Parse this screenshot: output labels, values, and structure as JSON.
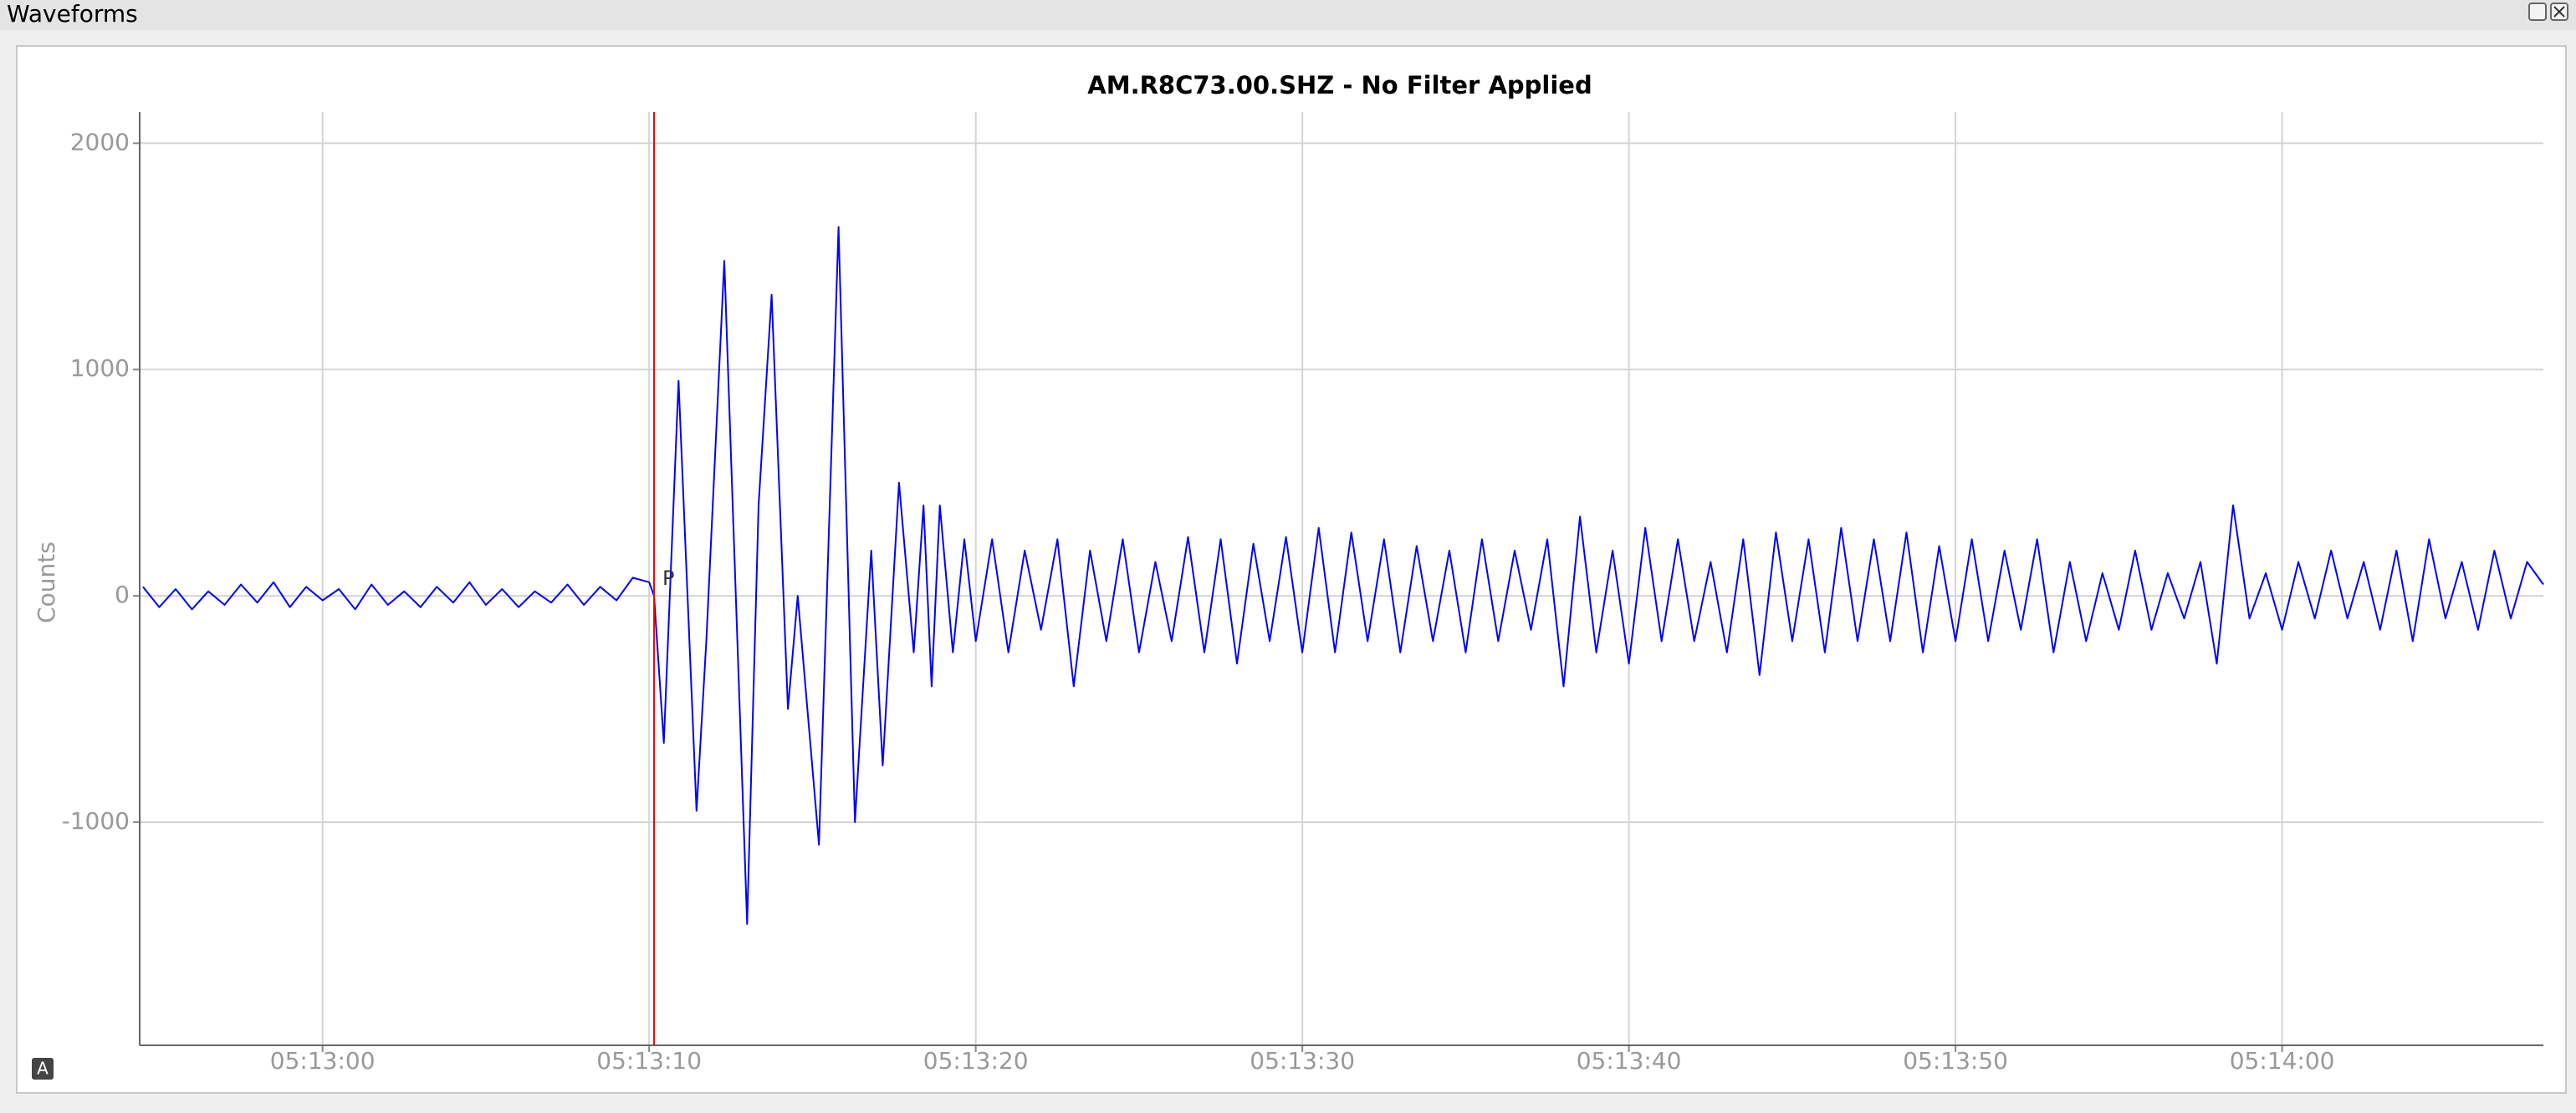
{
  "window": {
    "title": "Waveforms",
    "badge": "A"
  },
  "chart_data": {
    "type": "line",
    "title": "AM.R8C73.00.SHZ - No Filter Applied",
    "ylabel": "Counts",
    "color": "#0000ff",
    "grid": true,
    "marker": {
      "label": "P",
      "x": 18790.15,
      "color": "#ff0000"
    },
    "xlim": [
      18774.4,
      18848.0
    ],
    "ylim": [
      -1986,
      2138
    ],
    "xticks": [
      {
        "value": 18780,
        "label": "05:13:00"
      },
      {
        "value": 18790,
        "label": "05:13:10"
      },
      {
        "value": 18800,
        "label": "05:13:20"
      },
      {
        "value": 18810,
        "label": "05:13:30"
      },
      {
        "value": 18820,
        "label": "05:13:40"
      },
      {
        "value": 18830,
        "label": "05:13:50"
      },
      {
        "value": 18840,
        "label": "05:14:00"
      }
    ],
    "yticks": [
      2000,
      1000,
      0,
      -1000
    ],
    "x": [
      18774.5,
      18775.0,
      18775.5,
      18776.0,
      18776.5,
      18777.0,
      18777.5,
      18778.0,
      18778.5,
      18779.0,
      18779.5,
      18780.0,
      18780.5,
      18781.0,
      18781.5,
      18782.0,
      18782.5,
      18783.0,
      18783.5,
      18784.0,
      18784.5,
      18785.0,
      18785.5,
      18786.0,
      18786.5,
      18787.0,
      18787.5,
      18788.0,
      18788.5,
      18789.0,
      18789.5,
      18790.0,
      18790.15,
      18790.45,
      18790.9,
      18791.45,
      18791.75,
      18792.3,
      18793.0,
      18793.35,
      18793.75,
      18794.25,
      18794.55,
      18795.2,
      18795.8,
      18796.3,
      18796.8,
      18797.15,
      18797.65,
      18798.1,
      18798.4,
      18798.65,
      18798.9,
      18799.3,
      18799.65,
      18800.0,
      18800.5,
      18801.0,
      18801.5,
      18802.0,
      18802.5,
      18803.0,
      18803.5,
      18804.0,
      18804.5,
      18805.0,
      18805.5,
      18806.0,
      18806.5,
      18807.0,
      18807.5,
      18808.0,
      18808.5,
      18809.0,
      18809.5,
      18810.0,
      18810.5,
      18811.0,
      18811.5,
      18812.0,
      18812.5,
      18813.0,
      18813.5,
      18814.0,
      18814.5,
      18815.0,
      18815.5,
      18816.0,
      18816.5,
      18817.0,
      18817.5,
      18818.0,
      18818.5,
      18819.0,
      18819.5,
      18820.0,
      18820.5,
      18821.0,
      18821.5,
      18822.0,
      18822.5,
      18823.0,
      18823.5,
      18824.0,
      18824.5,
      18825.0,
      18825.5,
      18826.0,
      18826.5,
      18827.0,
      18827.5,
      18828.0,
      18828.5,
      18829.0,
      18829.5,
      18830.0,
      18830.5,
      18831.0,
      18831.5,
      18832.0,
      18832.5,
      18833.0,
      18833.5,
      18834.0,
      18834.5,
      18835.0,
      18835.5,
      18836.0,
      18836.5,
      18837.0,
      18837.5,
      18838.0,
      18838.5,
      18839.0,
      18839.5,
      18840.0,
      18840.5,
      18841.0,
      18841.5,
      18842.0,
      18842.5,
      18843.0,
      18843.5,
      18844.0,
      18844.5,
      18845.0,
      18845.5,
      18846.0,
      18846.5,
      18847.0,
      18847.5,
      18848.0
    ],
    "values": [
      40,
      -50,
      30,
      -60,
      20,
      -40,
      50,
      -30,
      60,
      -50,
      40,
      -20,
      30,
      -60,
      50,
      -40,
      20,
      -50,
      40,
      -30,
      60,
      -40,
      30,
      -50,
      20,
      -30,
      50,
      -40,
      40,
      -20,
      80,
      60,
      0,
      -650,
      950,
      -950,
      -200,
      1480,
      -1450,
      400,
      1330,
      -500,
      0,
      -1100,
      1630,
      -1000,
      200,
      -750,
      500,
      -250,
      400,
      -400,
      400,
      -250,
      250,
      -200,
      250,
      -250,
      200,
      -150,
      250,
      -400,
      200,
      -200,
      250,
      -250,
      150,
      -200,
      260,
      -250,
      250,
      -300,
      230,
      -200,
      260,
      -250,
      300,
      -250,
      280,
      -200,
      250,
      -250,
      220,
      -200,
      200,
      -250,
      250,
      -200,
      200,
      -150,
      250,
      -400,
      350,
      -250,
      200,
      -300,
      300,
      -200,
      250,
      -200,
      150,
      -250,
      250,
      -350,
      280,
      -200,
      250,
      -250,
      300,
      -200,
      250,
      -200,
      280,
      -250,
      220,
      -200,
      250,
      -200,
      200,
      -150,
      250,
      -250,
      150,
      -200,
      100,
      -150,
      200,
      -150,
      100,
      -100,
      150,
      -300,
      400,
      -100,
      100,
      -150,
      150,
      -100,
      200,
      -100,
      150,
      -150,
      200,
      -200,
      250,
      -100,
      150,
      -150,
      200,
      -100,
      150,
      50
    ]
  }
}
